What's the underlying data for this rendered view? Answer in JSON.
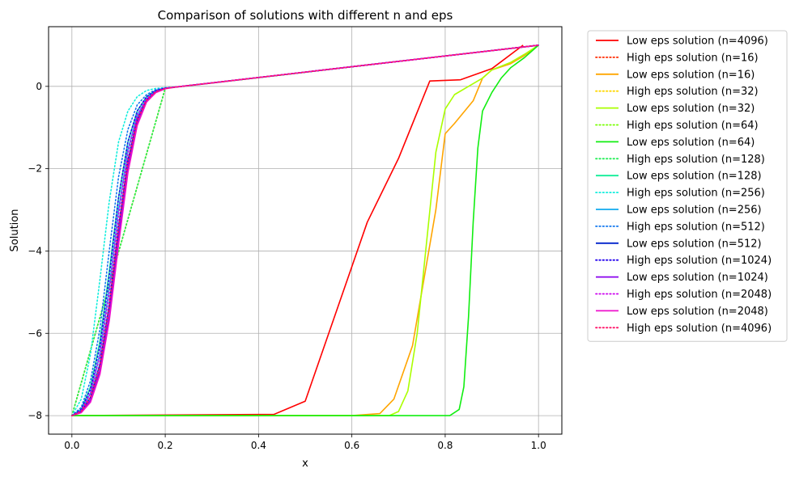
{
  "chart_data": {
    "type": "line",
    "title": "Comparison of solutions with different n and eps",
    "xlabel": "x",
    "ylabel": "Solution",
    "xlim": [
      -0.05,
      1.05
    ],
    "ylim": [
      -8.45,
      1.45
    ],
    "xticks": [
      0.0,
      0.2,
      0.4,
      0.6,
      0.8,
      1.0
    ],
    "xtick_labels": [
      "0.0",
      "0.2",
      "0.4",
      "0.6",
      "0.8",
      "1.0"
    ],
    "yticks": [
      -8,
      -6,
      -4,
      -2,
      0
    ],
    "ytick_labels": [
      "−8",
      "−6",
      "−4",
      "−2",
      "0"
    ],
    "grid": true,
    "legend_position": "outside-right",
    "series": [
      {
        "name": "Low eps solution (n=4096)",
        "color": "#ff0000",
        "style": "solid",
        "x": [
          0.0,
          0.433,
          0.5,
          0.633,
          0.7,
          0.767,
          0.833,
          0.9,
          0.967
        ],
        "y": [
          -8.0,
          -7.97,
          -7.65,
          -3.3,
          -1.75,
          0.13,
          0.16,
          0.43,
          1.0
        ]
      },
      {
        "name": "High eps solution (n=16)",
        "color": "#ff2a00",
        "style": "dotted",
        "x": [
          0.0,
          0.2,
          1.0
        ],
        "y": [
          -8.0,
          -0.05,
          1.0
        ]
      },
      {
        "name": "Low eps solution (n=16)",
        "color": "#ffa500",
        "style": "solid",
        "x": [
          0.0,
          0.6,
          0.66,
          0.69,
          0.73,
          0.78,
          0.8,
          0.82,
          0.86,
          0.88,
          0.9,
          0.94,
          0.97,
          1.0
        ],
        "y": [
          -8.0,
          -8.0,
          -7.95,
          -7.6,
          -6.3,
          -3.0,
          -1.15,
          -0.9,
          -0.35,
          0.2,
          0.4,
          0.55,
          0.75,
          1.0
        ]
      },
      {
        "name": "High eps solution (n=32)",
        "color": "#ffd700",
        "style": "dotted",
        "x": [
          0.0,
          0.2,
          1.0
        ],
        "y": [
          -8.0,
          -0.05,
          1.0
        ]
      },
      {
        "name": "Low eps solution (n=32)",
        "color": "#aaff00",
        "style": "solid",
        "x": [
          0.0,
          0.68,
          0.7,
          0.72,
          0.74,
          0.76,
          0.78,
          0.8,
          0.82,
          0.85,
          0.88,
          0.9,
          0.94,
          0.97,
          1.0
        ],
        "y": [
          -8.0,
          -8.0,
          -7.9,
          -7.4,
          -6.0,
          -3.8,
          -1.6,
          -0.55,
          -0.2,
          0.0,
          0.2,
          0.4,
          0.58,
          0.78,
          1.0
        ]
      },
      {
        "name": "High eps solution (n=64)",
        "color": "#77ff00",
        "style": "dotted",
        "x": [
          0.0,
          0.2,
          1.0
        ],
        "y": [
          -8.0,
          -0.05,
          1.0
        ]
      },
      {
        "name": "Low eps solution (n=64)",
        "color": "#11ee11",
        "style": "solid",
        "x": [
          0.0,
          0.81,
          0.83,
          0.84,
          0.85,
          0.86,
          0.87,
          0.88,
          0.9,
          0.92,
          0.94,
          0.97,
          1.0
        ],
        "y": [
          -8.0,
          -8.0,
          -7.85,
          -7.3,
          -5.6,
          -3.3,
          -1.5,
          -0.6,
          -0.15,
          0.2,
          0.45,
          0.7,
          1.0
        ]
      },
      {
        "name": "High eps solution (n=128)",
        "color": "#22ee55",
        "style": "dotted",
        "x": [
          0.0,
          0.2,
          1.0
        ],
        "y": [
          -8.0,
          -0.05,
          1.0
        ]
      },
      {
        "name": "Low eps solution (n=128)",
        "color": "#11ee99",
        "style": "solid",
        "x": [
          0.0,
          0.02,
          0.04,
          0.06,
          0.08,
          0.1,
          0.12,
          0.14,
          0.16,
          0.18,
          0.2,
          0.22,
          1.0
        ],
        "y": [
          -8.0,
          -7.85,
          -7.3,
          -6.2,
          -4.5,
          -2.7,
          -1.35,
          -0.6,
          -0.25,
          -0.1,
          -0.05,
          -0.02,
          1.0
        ]
      },
      {
        "name": "High eps solution (n=256)",
        "color": "#11eedd",
        "style": "dotted",
        "x": [
          0.0,
          0.02,
          0.04,
          0.06,
          0.08,
          0.1,
          0.12,
          0.14,
          0.16,
          0.18,
          0.2,
          0.22,
          1.0
        ],
        "y": [
          -8.0,
          -7.6,
          -6.5,
          -4.7,
          -2.8,
          -1.35,
          -0.6,
          -0.25,
          -0.1,
          -0.05,
          -0.03,
          -0.02,
          1.0
        ]
      },
      {
        "name": "Low eps solution (n=256)",
        "color": "#11aaee",
        "style": "solid",
        "x": [
          0.0,
          0.02,
          0.04,
          0.06,
          0.08,
          0.1,
          0.12,
          0.14,
          0.16,
          0.18,
          0.2,
          0.22,
          1.0
        ],
        "y": [
          -8.0,
          -7.88,
          -7.45,
          -6.5,
          -4.9,
          -3.0,
          -1.55,
          -0.7,
          -0.3,
          -0.12,
          -0.05,
          -0.02,
          1.0
        ]
      },
      {
        "name": "High eps solution (n=512)",
        "color": "#1177ee",
        "style": "dotted",
        "x": [
          0.0,
          0.02,
          0.04,
          0.06,
          0.08,
          0.1,
          0.12,
          0.14,
          0.16,
          0.18,
          0.2,
          0.22,
          1.0
        ],
        "y": [
          -8.0,
          -7.8,
          -7.15,
          -5.9,
          -4.0,
          -2.2,
          -1.05,
          -0.45,
          -0.2,
          -0.08,
          -0.04,
          -0.02,
          1.0
        ]
      },
      {
        "name": "Low eps solution (n=512)",
        "color": "#0022cc",
        "style": "solid",
        "x": [
          0.0,
          0.02,
          0.04,
          0.06,
          0.08,
          0.1,
          0.12,
          0.14,
          0.16,
          0.18,
          0.2,
          0.22,
          1.0
        ],
        "y": [
          -8.0,
          -7.9,
          -7.55,
          -6.75,
          -5.3,
          -3.4,
          -1.8,
          -0.8,
          -0.33,
          -0.13,
          -0.05,
          -0.02,
          1.0
        ]
      },
      {
        "name": "High eps solution (n=1024)",
        "color": "#2200ee",
        "style": "dotted",
        "x": [
          0.0,
          0.02,
          0.04,
          0.06,
          0.08,
          0.1,
          0.12,
          0.14,
          0.16,
          0.18,
          0.2,
          0.22,
          1.0
        ],
        "y": [
          -8.0,
          -7.85,
          -7.35,
          -6.3,
          -4.6,
          -2.7,
          -1.35,
          -0.6,
          -0.25,
          -0.1,
          -0.04,
          -0.02,
          1.0
        ]
      },
      {
        "name": "Low eps solution (n=1024)",
        "color": "#8800ee",
        "style": "solid",
        "x": [
          0.0,
          0.02,
          0.04,
          0.06,
          0.08,
          0.1,
          0.12,
          0.14,
          0.16,
          0.18,
          0.2,
          0.22,
          1.0
        ],
        "y": [
          -8.0,
          -7.92,
          -7.62,
          -6.9,
          -5.55,
          -3.65,
          -1.95,
          -0.88,
          -0.36,
          -0.14,
          -0.05,
          -0.02,
          1.0
        ]
      },
      {
        "name": "High eps solution (n=2048)",
        "color": "#cc00ee",
        "style": "dotted",
        "x": [
          0.0,
          0.02,
          0.04,
          0.06,
          0.08,
          0.1,
          0.12,
          0.14,
          0.16,
          0.18,
          0.2,
          0.22,
          1.0
        ],
        "y": [
          -8.0,
          -7.88,
          -7.45,
          -6.55,
          -5.0,
          -3.1,
          -1.6,
          -0.72,
          -0.3,
          -0.12,
          -0.05,
          -0.02,
          1.0
        ]
      },
      {
        "name": "Low eps solution (n=2048)",
        "color": "#ee11cc",
        "style": "solid",
        "x": [
          0.0,
          0.02,
          0.04,
          0.06,
          0.08,
          0.1,
          0.12,
          0.14,
          0.16,
          0.18,
          0.2,
          0.22,
          1.0
        ],
        "y": [
          -8.0,
          -7.93,
          -7.67,
          -7.0,
          -5.7,
          -3.85,
          -2.1,
          -0.95,
          -0.38,
          -0.15,
          -0.06,
          -0.02,
          1.0
        ]
      },
      {
        "name": "High eps solution (n=4096)",
        "color": "#ff1166",
        "style": "dotted",
        "x": [
          0.0,
          0.02,
          0.04,
          0.06,
          0.08,
          0.1,
          0.12,
          0.14,
          0.16,
          0.18,
          0.2,
          0.22,
          1.0
        ],
        "y": [
          -8.0,
          -7.9,
          -7.55,
          -6.8,
          -5.35,
          -3.45,
          -1.85,
          -0.83,
          -0.34,
          -0.13,
          -0.05,
          -0.02,
          1.0
        ]
      }
    ]
  }
}
